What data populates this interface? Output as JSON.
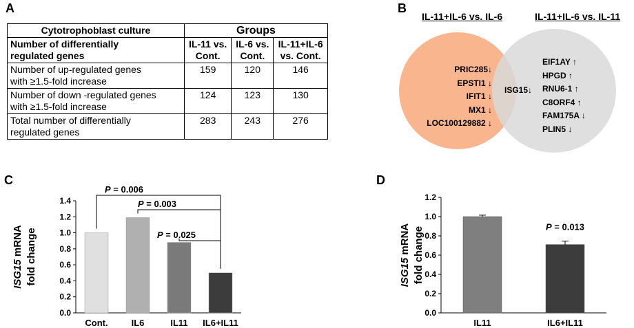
{
  "panels": {
    "a": "A",
    "b": "B",
    "c": "C",
    "d": "D"
  },
  "table": {
    "header_left": "Cytotrophoblast culture",
    "groups_header": "Groups",
    "subheader_left": [
      "Number of differentially",
      "regulated  genes"
    ],
    "columns": [
      [
        "IL-11 vs.",
        "Cont."
      ],
      [
        "IL-6 vs.",
        "Cont."
      ],
      [
        "IL-11+IL-6",
        "vs. Cont."
      ]
    ],
    "rows": [
      {
        "label": [
          "Number of up-regulated genes",
          "with ≥1.5-fold increase"
        ],
        "values": [
          "159",
          "120",
          "146"
        ]
      },
      {
        "label": [
          "Number of down -regulated genes",
          "with ≥1.5-fold increase"
        ],
        "values": [
          "124",
          "123",
          "130"
        ]
      },
      {
        "label": [
          "Total number of differentially",
          "regulated  genes"
        ],
        "values": [
          "283",
          "243",
          "276"
        ]
      }
    ]
  },
  "venn": {
    "left_title": "IL-11+IL-6 vs. IL-6",
    "right_title": "IL-11+IL-6 vs. IL-11",
    "left_color": "#f8b58e",
    "right_color": "#d9d9d9",
    "left_genes": [
      "PRIC285↓",
      "EPSTI1 ↓",
      "IFIT1 ↓",
      "MX1 ↓",
      "LOC100129882 ↓"
    ],
    "shared_genes": [
      "ISG15↓"
    ],
    "right_genes": [
      "EIF1AY ↑",
      "HPGD ↑",
      "RNU6-1 ↑",
      "C8ORF4 ↑",
      "FAM175A ↓",
      "PLIN5 ↓"
    ]
  },
  "chart_data": [
    {
      "type": "bar",
      "panel": "C",
      "ylabel_gene": "ISG15",
      "ylabel": "ISG15 mRNA fold change",
      "ylabel_rest": " mRNA",
      "ylabel_line2": "fold change",
      "categories": [
        "Cont.",
        "IL6",
        "IL11",
        "IL6+IL11"
      ],
      "values": [
        1.0,
        1.19,
        0.88,
        0.5
      ],
      "colors": [
        "#e0e0e0",
        "#b0b0b0",
        "#7a7a7a",
        "#3c3c3c"
      ],
      "ylim": [
        0,
        1.4
      ],
      "yticks": [
        "0.0",
        "0.2",
        "0.4",
        "0.6",
        "0.8",
        "1.0",
        "1.2",
        "1.4"
      ],
      "comparisons": [
        {
          "from": "Cont.",
          "to": "IL6+IL11",
          "p": "= 0.006"
        },
        {
          "from": "IL6",
          "to": "IL6+IL11",
          "p": "= 0.003"
        },
        {
          "from": "IL11",
          "to": "IL6+IL11",
          "p": "= 0.025"
        }
      ],
      "p_letter": "P"
    },
    {
      "type": "bar",
      "panel": "D",
      "ylabel_gene": "ISG15",
      "ylabel": "ISG15 mRNA fold change",
      "ylabel_rest": " mRNA",
      "ylabel_line2": "fold change",
      "categories": [
        "IL11",
        "IL6+IL11"
      ],
      "values": [
        1.0,
        0.71
      ],
      "errors": [
        0.015,
        0.035
      ],
      "colors": [
        "#7f7f7f",
        "#3c3c3c"
      ],
      "ylim": [
        0,
        1.2
      ],
      "yticks": [
        "0.0",
        "0.2",
        "0.4",
        "0.6",
        "0.8",
        "1.0",
        "1.2"
      ],
      "annotation_p": "P",
      "annotation_value": "= 0.013"
    }
  ]
}
